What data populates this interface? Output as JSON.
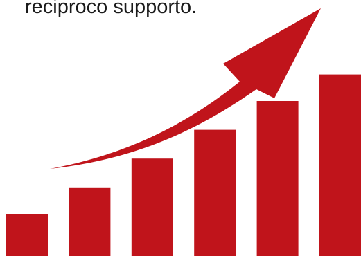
{
  "caption": "reciproco supporto.",
  "colors": {
    "bar": "#c0141b",
    "arrow": "#c0141b",
    "text": "#1a1a1a",
    "background": "#ffffff"
  },
  "chart_data": {
    "type": "bar",
    "categories": [
      "",
      "",
      "",
      "",
      "",
      ""
    ],
    "values": [
      19,
      31,
      44,
      57,
      70,
      82
    ],
    "ylim": [
      0,
      100
    ],
    "title": "",
    "xlabel": "",
    "ylabel": "",
    "grid": false,
    "axes_visible": false,
    "trend_arrow": true
  }
}
